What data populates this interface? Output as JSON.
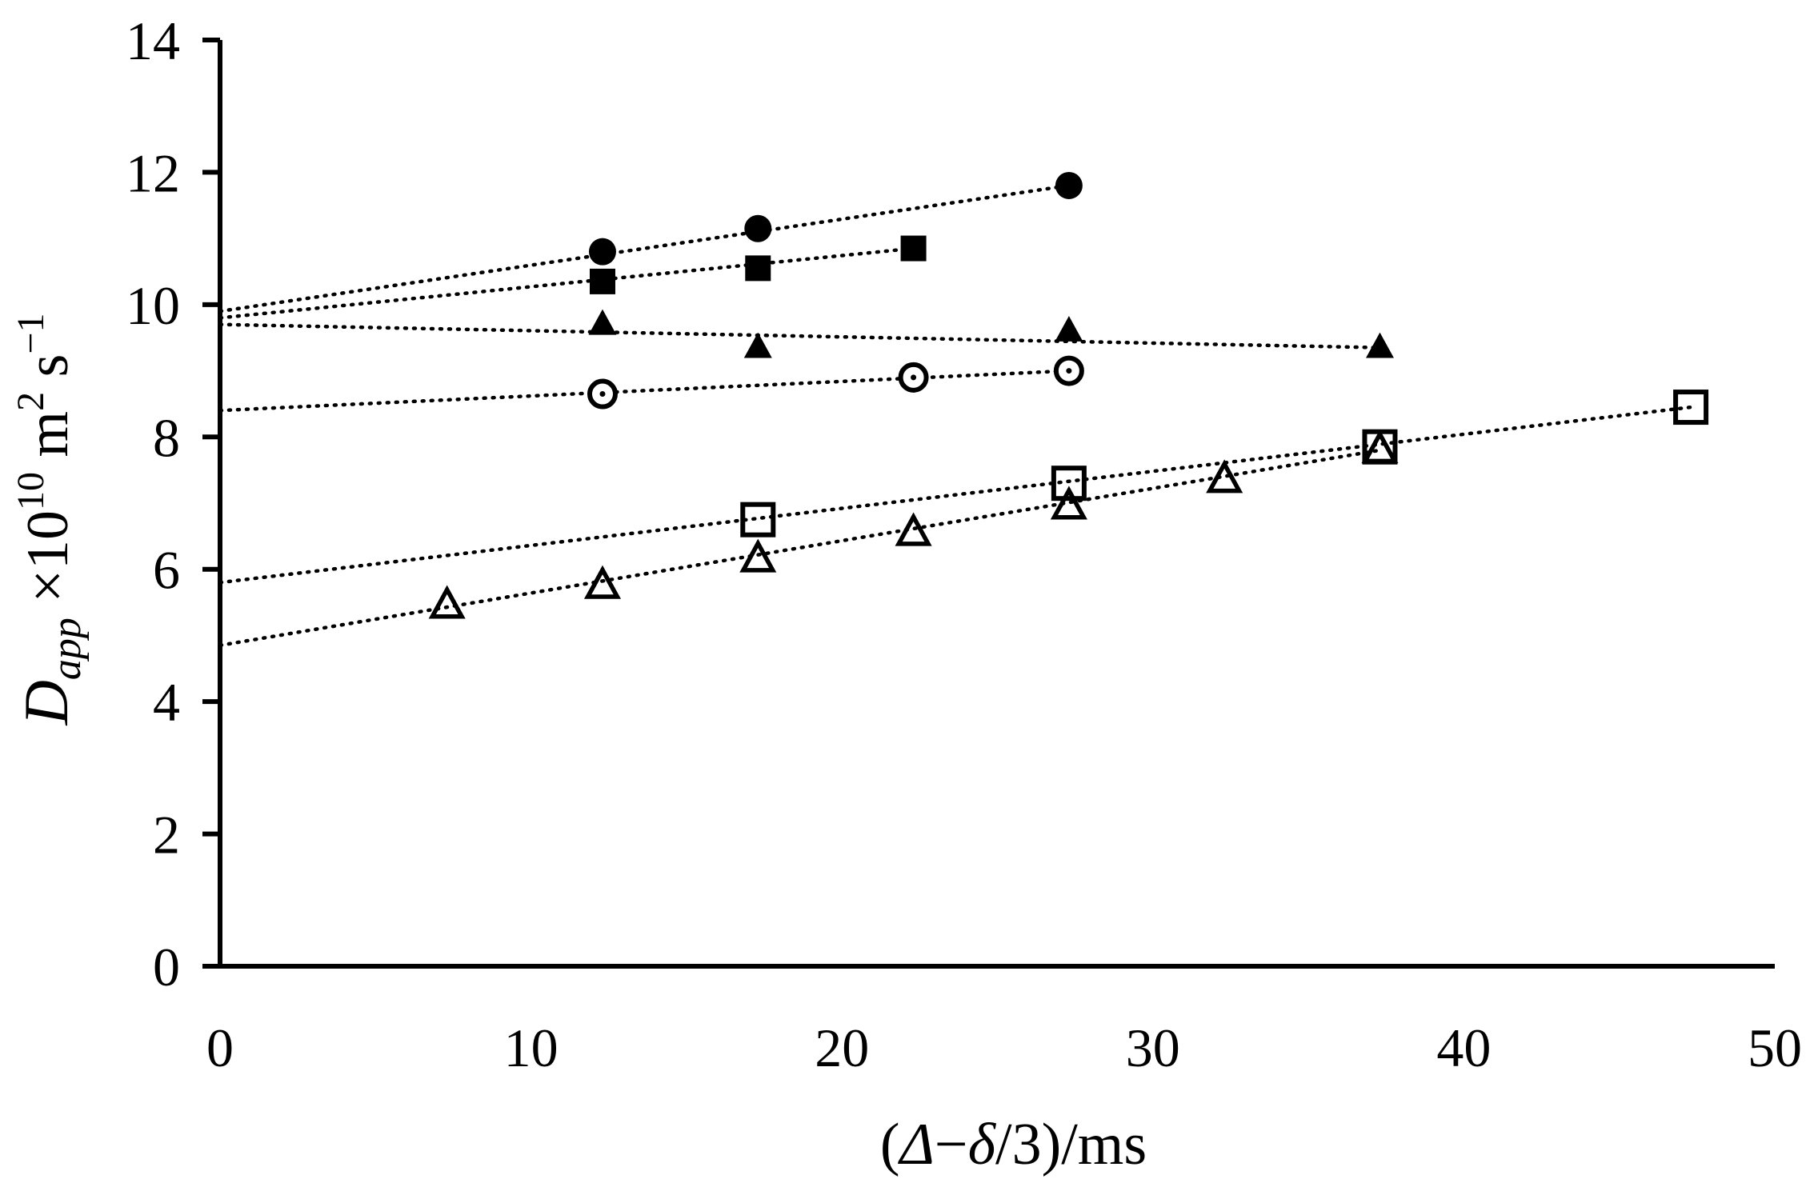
{
  "chart_data": {
    "type": "scatter",
    "title": "",
    "xlabel": "(Δ−δ/3)/ms",
    "xlabel_parts": {
      "open": "(",
      "delta_cap": "Δ",
      "minus": "−",
      "delta_small": "δ",
      "rest": "/3)/ms"
    },
    "ylabel": "D_app ×10^10 m^2 s^−1",
    "ylabel_parts": {
      "main": "D",
      "sub": "app",
      "times": " ×10",
      "exp10": "10",
      "m": " m",
      "exp2": "2",
      "s": " s",
      "expneg1": "−1"
    },
    "xlim": [
      0,
      50
    ],
    "ylim": [
      0,
      14
    ],
    "xticks": [
      0,
      10,
      20,
      30,
      40,
      50
    ],
    "yticks": [
      0,
      2,
      4,
      6,
      8,
      10,
      12,
      14
    ],
    "grid": false,
    "legend": "none",
    "series": [
      {
        "name": "filled circles",
        "marker": "filled-circle",
        "x": [
          12.3,
          17.3,
          27.3
        ],
        "y": [
          10.8,
          11.15,
          11.8
        ],
        "fit": {
          "intercept": 9.9,
          "x_end": 27.3,
          "y_end": 11.8
        }
      },
      {
        "name": "filled squares",
        "marker": "filled-square",
        "x": [
          12.3,
          17.3,
          22.3
        ],
        "y": [
          10.35,
          10.55,
          10.85
        ],
        "fit": {
          "intercept": 9.8,
          "x_end": 22.3,
          "y_end": 10.85
        }
      },
      {
        "name": "filled triangles",
        "marker": "filled-triangle",
        "x": [
          12.3,
          17.3,
          27.3,
          37.3
        ],
        "y": [
          9.7,
          9.35,
          9.6,
          9.35
        ],
        "fit": {
          "intercept": 9.7,
          "x_end": 37.3,
          "y_end": 9.35
        }
      },
      {
        "name": "dotted circles",
        "marker": "open-dot-circle",
        "x": [
          12.3,
          22.3,
          27.3
        ],
        "y": [
          8.65,
          8.9,
          9.0
        ],
        "fit": {
          "intercept": 8.4,
          "x_end": 27.3,
          "y_end": 9.0
        }
      },
      {
        "name": "open squares",
        "marker": "open-square",
        "x": [
          17.3,
          27.3,
          37.3,
          47.3
        ],
        "y": [
          6.75,
          7.3,
          7.85,
          8.45
        ],
        "fit": {
          "intercept": 5.8,
          "x_end": 47.3,
          "y_end": 8.45
        }
      },
      {
        "name": "open triangles",
        "marker": "open-triangle",
        "x": [
          7.3,
          12.3,
          17.3,
          22.3,
          27.3,
          32.3,
          37.3
        ],
        "y": [
          5.45,
          5.75,
          6.15,
          6.55,
          6.95,
          7.35,
          7.8
        ],
        "fit": {
          "intercept": 4.85,
          "x_end": 37.3,
          "y_end": 7.8
        }
      }
    ]
  }
}
